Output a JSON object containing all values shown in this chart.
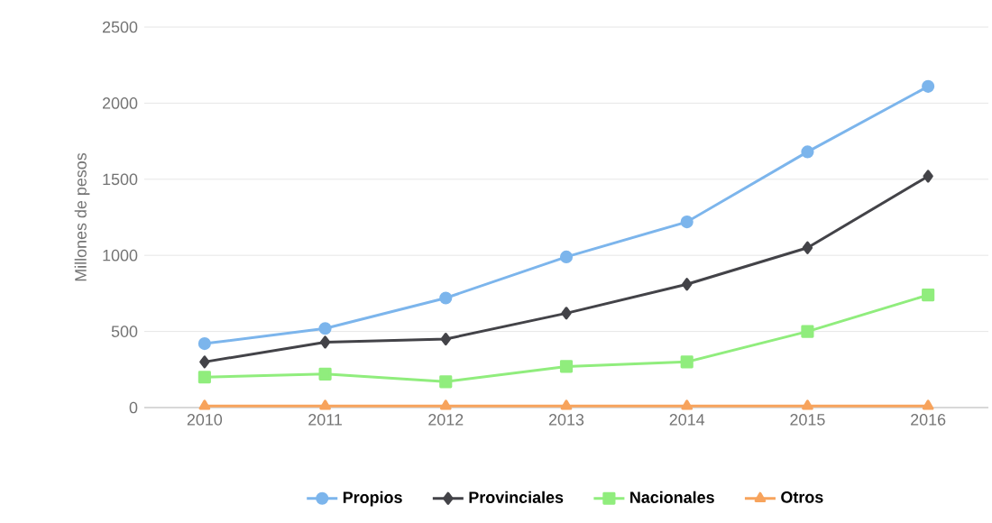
{
  "chart_data": {
    "type": "line",
    "ylabel": "Millones de pesos",
    "categories": [
      "2010",
      "2011",
      "2012",
      "2013",
      "2014",
      "2015",
      "2016"
    ],
    "series": [
      {
        "name": "Propios",
        "color": "#7cb5ec",
        "marker": "circle",
        "values": [
          420,
          520,
          720,
          990,
          1220,
          1680,
          2110
        ]
      },
      {
        "name": "Provinciales",
        "color": "#434348",
        "marker": "diamond",
        "values": [
          300,
          430,
          450,
          620,
          810,
          1050,
          1520
        ]
      },
      {
        "name": "Nacionales",
        "color": "#90ed7d",
        "marker": "square",
        "values": [
          200,
          220,
          170,
          270,
          300,
          500,
          740
        ]
      },
      {
        "name": "Otros",
        "color": "#f7a35c",
        "marker": "triangle",
        "values": [
          10,
          10,
          10,
          10,
          10,
          10,
          10
        ]
      }
    ],
    "ylim": [
      0,
      2500
    ],
    "yticks": [
      0,
      500,
      1000,
      1500,
      2000,
      2500
    ],
    "grid": "y",
    "legend": "bottom"
  }
}
